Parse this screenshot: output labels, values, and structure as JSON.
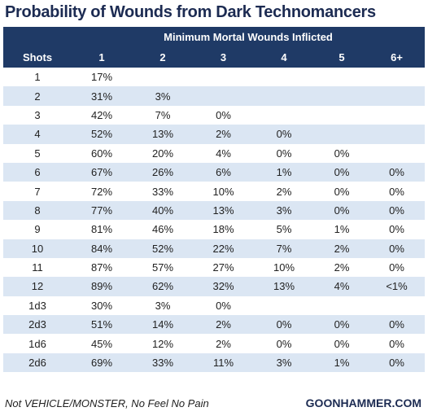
{
  "chart_data": {
    "type": "table",
    "title": "Probability of Wounds from Dark Technomancers",
    "group_header": "Minimum Mortal Wounds Inflicted",
    "row_header": "Shots",
    "columns": [
      "1",
      "2",
      "3",
      "4",
      "5",
      "6+"
    ],
    "rows": [
      {
        "shots": "1",
        "values": [
          "17%",
          "",
          "",
          "",
          "",
          ""
        ]
      },
      {
        "shots": "2",
        "values": [
          "31%",
          "3%",
          "",
          "",
          "",
          ""
        ]
      },
      {
        "shots": "3",
        "values": [
          "42%",
          "7%",
          "0%",
          "",
          "",
          ""
        ]
      },
      {
        "shots": "4",
        "values": [
          "52%",
          "13%",
          "2%",
          "0%",
          "",
          ""
        ]
      },
      {
        "shots": "5",
        "values": [
          "60%",
          "20%",
          "4%",
          "0%",
          "0%",
          ""
        ]
      },
      {
        "shots": "6",
        "values": [
          "67%",
          "26%",
          "6%",
          "1%",
          "0%",
          "0%"
        ]
      },
      {
        "shots": "7",
        "values": [
          "72%",
          "33%",
          "10%",
          "2%",
          "0%",
          "0%"
        ]
      },
      {
        "shots": "8",
        "values": [
          "77%",
          "40%",
          "13%",
          "3%",
          "0%",
          "0%"
        ]
      },
      {
        "shots": "9",
        "values": [
          "81%",
          "46%",
          "18%",
          "5%",
          "1%",
          "0%"
        ]
      },
      {
        "shots": "10",
        "values": [
          "84%",
          "52%",
          "22%",
          "7%",
          "2%",
          "0%"
        ]
      },
      {
        "shots": "11",
        "values": [
          "87%",
          "57%",
          "27%",
          "10%",
          "2%",
          "0%"
        ]
      },
      {
        "shots": "12",
        "values": [
          "89%",
          "62%",
          "32%",
          "13%",
          "4%",
          "<1%"
        ]
      },
      {
        "shots": "1d3",
        "values": [
          "30%",
          "3%",
          "0%",
          "",
          "",
          ""
        ]
      },
      {
        "shots": "2d3",
        "values": [
          "51%",
          "14%",
          "2%",
          "0%",
          "0%",
          "0%"
        ]
      },
      {
        "shots": "1d6",
        "values": [
          "45%",
          "12%",
          "2%",
          "0%",
          "0%",
          "0%"
        ]
      },
      {
        "shots": "2d6",
        "values": [
          "69%",
          "33%",
          "11%",
          "3%",
          "1%",
          "0%"
        ]
      }
    ],
    "footnote": "Not VEHICLE/MONSTER, No Feel No Pain",
    "source": "GOONHAMMER.COM",
    "colors": {
      "header": "#1f3a66",
      "stripe": "#dbe6f3",
      "title": "#1c2b52"
    }
  }
}
